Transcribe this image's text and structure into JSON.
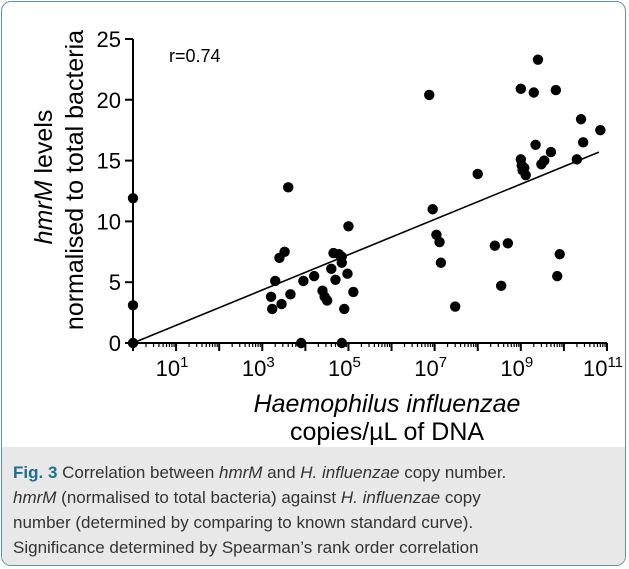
{
  "chart_data": {
    "type": "scatter",
    "annotation": "r=0.74",
    "xlabel_line1": "Haemophilus influenzae",
    "xlabel_line2": "copies/µL of  DNA",
    "ylabel_line1_italic": "hmrM",
    "ylabel_line1_rest": " levels",
    "ylabel_line2": "normalised to total bacteria",
    "x_scale": "log10",
    "xlim": [
      1,
      100000000000
    ],
    "ylim": [
      0,
      25
    ],
    "x_ticks": [
      {
        "base": "10",
        "exp": "1",
        "value": 10
      },
      {
        "base": "10",
        "exp": "3",
        "value": 1000
      },
      {
        "base": "10",
        "exp": "5",
        "value": 100000
      },
      {
        "base": "10",
        "exp": "7",
        "value": 10000000
      },
      {
        "base": "10",
        "exp": "9",
        "value": 1000000000
      },
      {
        "base": "10",
        "exp": "11",
        "value": 100000000000
      }
    ],
    "y_ticks": [
      "0",
      "5",
      "10",
      "15",
      "20",
      "25"
    ],
    "points": [
      {
        "x": 1,
        "y": 0
      },
      {
        "x": 1,
        "y": 3.1
      },
      {
        "x": 1,
        "y": 11.9
      },
      {
        "x": 1600,
        "y": 3.8
      },
      {
        "x": 1700,
        "y": 2.8
      },
      {
        "x": 2000,
        "y": 5.1
      },
      {
        "x": 2500,
        "y": 7.0
      },
      {
        "x": 2800,
        "y": 3.2
      },
      {
        "x": 3300,
        "y": 7.5
      },
      {
        "x": 4000,
        "y": 12.8
      },
      {
        "x": 4500,
        "y": 4.0
      },
      {
        "x": 8000,
        "y": 0
      },
      {
        "x": 9000,
        "y": 5.1
      },
      {
        "x": 16000,
        "y": 5.5
      },
      {
        "x": 25000,
        "y": 4.3
      },
      {
        "x": 28000,
        "y": 3.8
      },
      {
        "x": 32000,
        "y": 3.5
      },
      {
        "x": 40000,
        "y": 6.1
      },
      {
        "x": 45000,
        "y": 7.4
      },
      {
        "x": 50000,
        "y": 5.2
      },
      {
        "x": 60000,
        "y": 7.3
      },
      {
        "x": 70000,
        "y": 6.6
      },
      {
        "x": 70000,
        "y": 7.1
      },
      {
        "x": 70000,
        "y": 0
      },
      {
        "x": 80000,
        "y": 2.8
      },
      {
        "x": 95000,
        "y": 5.7
      },
      {
        "x": 100000,
        "y": 9.6
      },
      {
        "x": 130000,
        "y": 4.2
      },
      {
        "x": 7500000,
        "y": 20.4
      },
      {
        "x": 9000000,
        "y": 11.0
      },
      {
        "x": 11000000,
        "y": 8.9
      },
      {
        "x": 13000000,
        "y": 8.3
      },
      {
        "x": 14000000,
        "y": 6.6
      },
      {
        "x": 30000000,
        "y": 3.0
      },
      {
        "x": 100000000,
        "y": 13.9
      },
      {
        "x": 250000000,
        "y": 8.0
      },
      {
        "x": 350000000,
        "y": 4.7
      },
      {
        "x": 500000000,
        "y": 8.2
      },
      {
        "x": 1000000000,
        "y": 20.9
      },
      {
        "x": 1000000000,
        "y": 15.1
      },
      {
        "x": 1050000000,
        "y": 14.6
      },
      {
        "x": 1100000000,
        "y": 14.2
      },
      {
        "x": 1200000000,
        "y": 14.4
      },
      {
        "x": 1300000000,
        "y": 13.8
      },
      {
        "x": 2000000000,
        "y": 20.6
      },
      {
        "x": 2200000000,
        "y": 16.3
      },
      {
        "x": 2500000000,
        "y": 23.3
      },
      {
        "x": 3000000000,
        "y": 14.7
      },
      {
        "x": 3500000000,
        "y": 15.0
      },
      {
        "x": 5000000000,
        "y": 15.7
      },
      {
        "x": 6500000000,
        "y": 20.8
      },
      {
        "x": 7000000000,
        "y": 5.5
      },
      {
        "x": 8000000000,
        "y": 7.3
      },
      {
        "x": 20000000000,
        "y": 15.1
      },
      {
        "x": 25000000000,
        "y": 18.4
      },
      {
        "x": 28000000000,
        "y": 16.5
      },
      {
        "x": 70000000000,
        "y": 17.5
      }
    ],
    "fit_line": [
      {
        "x": 1,
        "y": 0
      },
      {
        "x": 65000000000,
        "y": 15.7
      }
    ],
    "grid": false,
    "legend": "none"
  },
  "caption": {
    "fig_label": "Fig. 3",
    "segments": [
      {
        "text": " Correlation between ",
        "italic": false
      },
      {
        "text": "hmrM",
        "italic": true
      },
      {
        "text": " and ",
        "italic": false
      },
      {
        "text": "H. influenzae",
        "italic": true
      },
      {
        "text": " copy number.",
        "italic": false
      }
    ],
    "line2": [
      {
        "text": "hmrM",
        "italic": true
      },
      {
        "text": " (normalised to total bacteria) against ",
        "italic": false
      },
      {
        "text": "H. influenzae",
        "italic": true
      },
      {
        "text": " copy",
        "italic": false
      }
    ],
    "line3": "number (determined by comparing to known standard curve).",
    "line4": "Significance determined by Spearman’s rank order correlation"
  }
}
